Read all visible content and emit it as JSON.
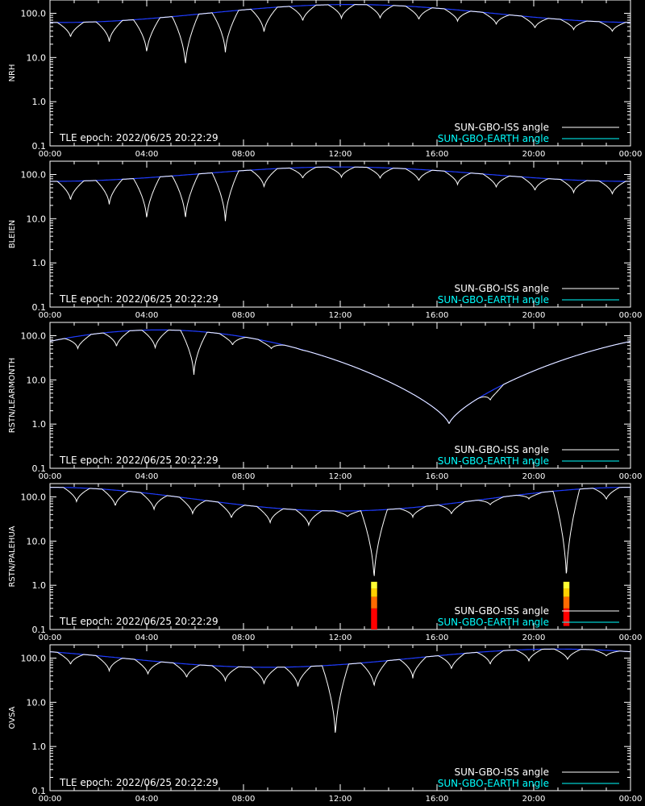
{
  "chart_data": [
    {
      "type": "line",
      "ylabel": "NRH",
      "annotation": "TLE epoch: 2022/06/25 20:22:29",
      "x_ticks": [
        "00:00",
        "04:00",
        "08:00",
        "12:00",
        "16:00",
        "20:00",
        "00:00"
      ],
      "y_ticks": [
        "0.1",
        "1.0",
        "10.0",
        "100.0"
      ],
      "xlim": [
        0,
        24
      ],
      "ylim": [
        0.1,
        200
      ],
      "yscale": "log",
      "series": [
        {
          "name": "SUN-GBO-ISS angle",
          "color": "#ffffff"
        },
        {
          "name": "SUN-GBO-EARTH angle",
          "color": "#00ffff"
        }
      ],
      "earth_curve": {
        "hour_of_max": 12.4,
        "max_deg": 158,
        "min_deg": 62
      },
      "iss_orbit_minima": [
        {
          "t": 0.85,
          "deg": 28
        },
        {
          "t": 2.45,
          "deg": 22
        },
        {
          "t": 4.0,
          "deg": 12
        },
        {
          "t": 5.6,
          "deg": 6
        },
        {
          "t": 7.25,
          "deg": 12
        },
        {
          "t": 8.85,
          "deg": 35
        },
        {
          "t": 10.45,
          "deg": 65
        },
        {
          "t": 12.05,
          "deg": 75
        },
        {
          "t": 13.65,
          "deg": 75
        },
        {
          "t": 15.25,
          "deg": 70
        },
        {
          "t": 16.85,
          "deg": 65
        },
        {
          "t": 18.45,
          "deg": 55
        },
        {
          "t": 20.05,
          "deg": 45
        },
        {
          "t": 21.65,
          "deg": 42
        },
        {
          "t": 23.25,
          "deg": 38
        }
      ],
      "alerts": []
    },
    {
      "type": "line",
      "ylabel": "BLEIEN",
      "annotation": "TLE epoch: 2022/06/25 20:22:29",
      "x_ticks": [
        "00:00",
        "04:00",
        "08:00",
        "12:00",
        "16:00",
        "20:00",
        "00:00"
      ],
      "y_ticks": [
        "0.1",
        "1.0",
        "10.0",
        "100.0"
      ],
      "xlim": [
        0,
        24
      ],
      "ylim": [
        0.1,
        200
      ],
      "yscale": "log",
      "series": [
        {
          "name": "SUN-GBO-ISS angle",
          "color": "#ffffff"
        },
        {
          "name": "SUN-GBO-EARTH angle",
          "color": "#00ffff"
        }
      ],
      "earth_curve": {
        "hour_of_max": 12.0,
        "max_deg": 148,
        "min_deg": 70
      },
      "iss_orbit_minima": [
        {
          "t": 0.85,
          "deg": 25
        },
        {
          "t": 2.45,
          "deg": 20
        },
        {
          "t": 4.0,
          "deg": 9
        },
        {
          "t": 5.6,
          "deg": 9
        },
        {
          "t": 7.25,
          "deg": 8
        },
        {
          "t": 8.85,
          "deg": 50
        },
        {
          "t": 10.45,
          "deg": 80
        },
        {
          "t": 12.05,
          "deg": 85
        },
        {
          "t": 13.65,
          "deg": 80
        },
        {
          "t": 15.25,
          "deg": 70
        },
        {
          "t": 16.85,
          "deg": 58
        },
        {
          "t": 18.45,
          "deg": 50
        },
        {
          "t": 20.05,
          "deg": 42
        },
        {
          "t": 21.65,
          "deg": 38
        },
        {
          "t": 23.25,
          "deg": 35
        }
      ],
      "alerts": []
    },
    {
      "type": "line",
      "ylabel": "RSTN/LEARMONTH",
      "annotation": "TLE epoch: 2022/06/25 20:22:29",
      "x_ticks": [
        "00:00",
        "04:00",
        "08:00",
        "12:00",
        "16:00",
        "20:00",
        "00:00"
      ],
      "y_ticks": [
        "0.1",
        "1.0",
        "10.0",
        "100.0"
      ],
      "xlim": [
        0,
        24
      ],
      "ylim": [
        0.1,
        200
      ],
      "yscale": "log",
      "series": [
        {
          "name": "SUN-GBO-ISS angle",
          "color": "#ffffff"
        },
        {
          "name": "SUN-GBO-EARTH angle",
          "color": "#00ffff"
        }
      ],
      "earth_curve": {
        "hour_of_max": 4.5,
        "max_deg": 135,
        "min_deg": 1.0,
        "hour_of_min": 16.5
      },
      "iss_orbit_minima": [
        {
          "t": 1.15,
          "deg": 50
        },
        {
          "t": 2.75,
          "deg": 55
        },
        {
          "t": 4.35,
          "deg": 50
        },
        {
          "t": 5.95,
          "deg": 12
        },
        {
          "t": 7.55,
          "deg": 60
        },
        {
          "t": 9.15,
          "deg": 50
        },
        {
          "t": 10.75,
          "deg": 45
        },
        {
          "t": 12.35,
          "deg": 28
        },
        {
          "t": 13.95,
          "deg": 20
        },
        {
          "t": 15.25,
          "deg": 13
        },
        {
          "t": 16.75,
          "deg": 5
        },
        {
          "t": 18.2,
          "deg": 3.4
        },
        {
          "t": 19.85,
          "deg": 25
        },
        {
          "t": 21.45,
          "deg": 40
        },
        {
          "t": 23.05,
          "deg": 65
        }
      ],
      "alerts": []
    },
    {
      "type": "line",
      "ylabel": "RSTN/PALEHUA",
      "annotation": "TLE epoch: 2022/06/25 20:22:29",
      "x_ticks": [
        "00:00",
        "04:00",
        "08:00",
        "12:00",
        "16:00",
        "20:00",
        "00:00"
      ],
      "y_ticks": [
        "0.1",
        "1.0",
        "10.0",
        "100.0"
      ],
      "xlim": [
        0,
        24
      ],
      "ylim": [
        0.1,
        200
      ],
      "yscale": "log",
      "series": [
        {
          "name": "SUN-GBO-ISS angle",
          "color": "#ffffff"
        },
        {
          "name": "SUN-GBO-EARTH angle",
          "color": "#00ffff"
        }
      ],
      "earth_curve": {
        "hour_of_max": 0.0,
        "max_deg": 165,
        "min_deg": 48,
        "hour_of_min": 11.5
      },
      "iss_orbit_minima": [
        {
          "t": 1.1,
          "deg": 75
        },
        {
          "t": 2.7,
          "deg": 60
        },
        {
          "t": 4.3,
          "deg": 50
        },
        {
          "t": 5.9,
          "deg": 40
        },
        {
          "t": 7.5,
          "deg": 32
        },
        {
          "t": 9.1,
          "deg": 25
        },
        {
          "t": 10.7,
          "deg": 22
        },
        {
          "t": 12.3,
          "deg": 35
        },
        {
          "t": 13.4,
          "deg": 1.2
        },
        {
          "t": 15.0,
          "deg": 35
        },
        {
          "t": 16.6,
          "deg": 40
        },
        {
          "t": 18.2,
          "deg": 65
        },
        {
          "t": 19.8,
          "deg": 90
        },
        {
          "t": 21.35,
          "deg": 1.2
        },
        {
          "t": 23.0,
          "deg": 85
        }
      ],
      "alerts": [
        {
          "t": 13.4,
          "width_h": 0.25,
          "bands": [
            {
              "from": 0.1,
              "to": 0.3,
              "color": "#ff0000"
            },
            {
              "from": 0.3,
              "to": 0.55,
              "color": "#ff6a00"
            },
            {
              "from": 0.55,
              "to": 0.85,
              "color": "#ffd000"
            },
            {
              "from": 0.85,
              "to": 1.2,
              "color": "#ffff33"
            }
          ]
        },
        {
          "t": 21.35,
          "width_h": 0.25,
          "bands": [
            {
              "from": 0.12,
              "to": 0.3,
              "color": "#ff0000"
            },
            {
              "from": 0.3,
              "to": 0.55,
              "color": "#ff6a00"
            },
            {
              "from": 0.55,
              "to": 0.85,
              "color": "#ffd000"
            },
            {
              "from": 0.85,
              "to": 1.2,
              "color": "#ffff33"
            }
          ]
        }
      ]
    },
    {
      "type": "line",
      "ylabel": "OVSA",
      "annotation": "TLE epoch: 2022/06/25 20:22:29",
      "x_ticks": [
        "00:00",
        "04:00",
        "08:00",
        "12:00",
        "16:00",
        "20:00",
        "00:00"
      ],
      "y_ticks": [
        "0.1",
        "1.0",
        "10.0",
        "100.0"
      ],
      "xlim": [
        0,
        24
      ],
      "ylim": [
        0.1,
        200
      ],
      "yscale": "log",
      "series": [
        {
          "name": "SUN-GBO-ISS angle",
          "color": "#ffffff"
        },
        {
          "name": "SUN-GBO-EARTH angle",
          "color": "#00ffff"
        }
      ],
      "earth_curve": {
        "hour_of_max": 21.0,
        "max_deg": 160,
        "min_deg": 62,
        "hour_of_min": 8.5
      },
      "iss_orbit_minima": [
        {
          "t": 0.85,
          "deg": 70
        },
        {
          "t": 2.45,
          "deg": 50
        },
        {
          "t": 4.05,
          "deg": 42
        },
        {
          "t": 5.65,
          "deg": 35
        },
        {
          "t": 7.25,
          "deg": 30
        },
        {
          "t": 8.85,
          "deg": 25
        },
        {
          "t": 10.25,
          "deg": 22
        },
        {
          "t": 11.8,
          "deg": 1.5
        },
        {
          "t": 13.4,
          "deg": 22
        },
        {
          "t": 15.0,
          "deg": 35
        },
        {
          "t": 16.6,
          "deg": 55
        },
        {
          "t": 18.2,
          "deg": 70
        },
        {
          "t": 19.8,
          "deg": 85
        },
        {
          "t": 21.4,
          "deg": 90
        },
        {
          "t": 23.0,
          "deg": 110
        }
      ],
      "alerts": []
    }
  ]
}
